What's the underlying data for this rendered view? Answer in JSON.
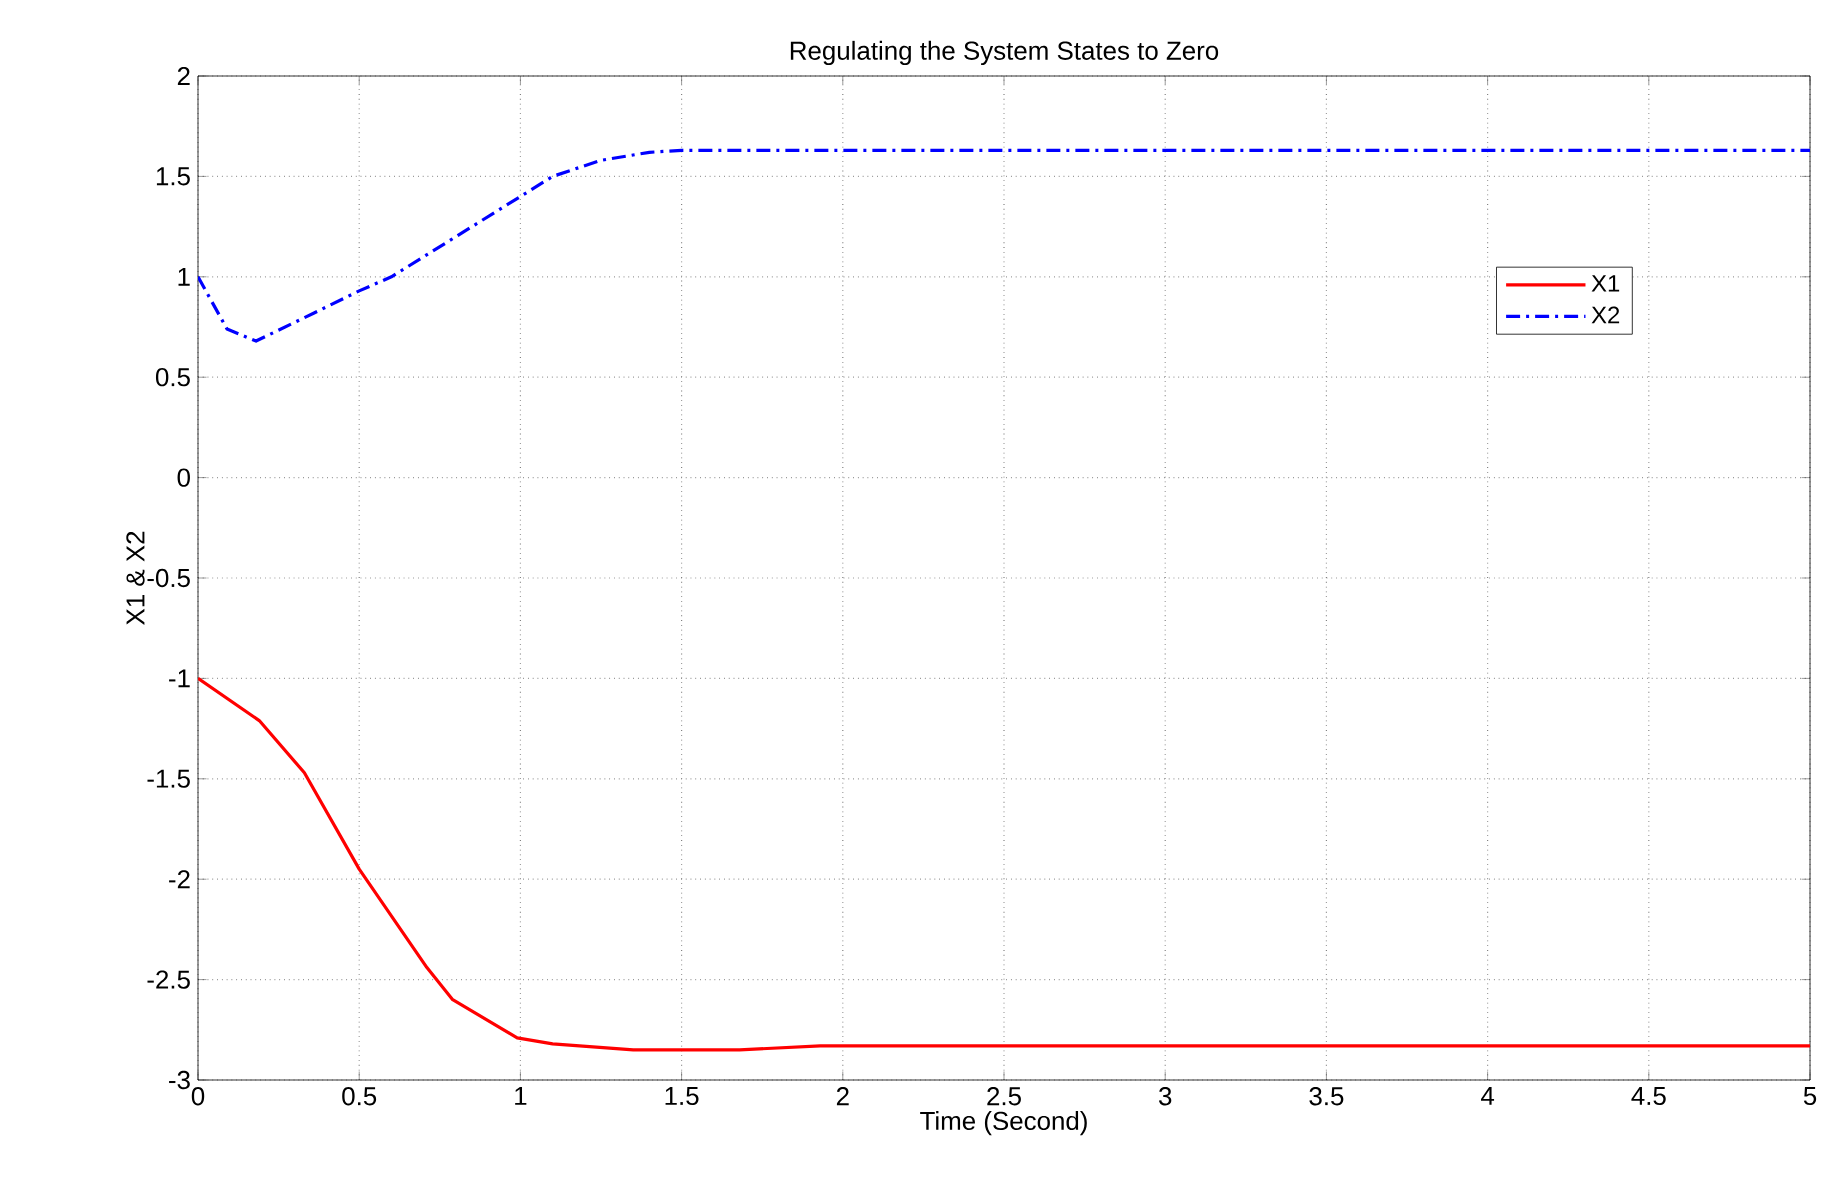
{
  "chart_data": {
    "type": "line",
    "title": "Regulating the System States to Zero",
    "xlabel": "Time (Second)",
    "ylabel": "X1 & X2",
    "xlim": [
      0,
      5
    ],
    "ylim": [
      -3,
      2
    ],
    "xticks": [
      0,
      0.5,
      1,
      1.5,
      2,
      2.5,
      3,
      3.5,
      4,
      4.5,
      5
    ],
    "yticks": [
      -3,
      -2.5,
      -2,
      -1.5,
      -1,
      -0.5,
      0,
      0.5,
      1,
      1.5,
      2
    ],
    "grid": true,
    "legend": "top right",
    "marker": "none",
    "series": [
      {
        "name": "X1",
        "color": "#ff0000",
        "line_style": "solid",
        "x": [
          0,
          0.19,
          0.33,
          0.5,
          0.71,
          0.79,
          0.99,
          1.1,
          1.35,
          1.68,
          1.93,
          5
        ],
        "values": [
          -1,
          -1.21,
          -1.47,
          -1.95,
          -2.44,
          -2.6,
          -2.79,
          -2.82,
          -2.85,
          -2.85,
          -2.83,
          -2.83
        ]
      },
      {
        "name": "X2",
        "color": "#0000ff",
        "line_style": "dash-dot",
        "x": [
          0,
          0.09,
          0.18,
          0.36,
          0.5,
          0.6,
          0.77,
          1.0,
          1.1,
          1.25,
          1.4,
          1.5,
          5
        ],
        "values": [
          1,
          0.74,
          0.68,
          0.82,
          0.93,
          1.0,
          1.17,
          1.4,
          1.5,
          1.58,
          1.62,
          1.63,
          1.63
        ]
      }
    ]
  }
}
